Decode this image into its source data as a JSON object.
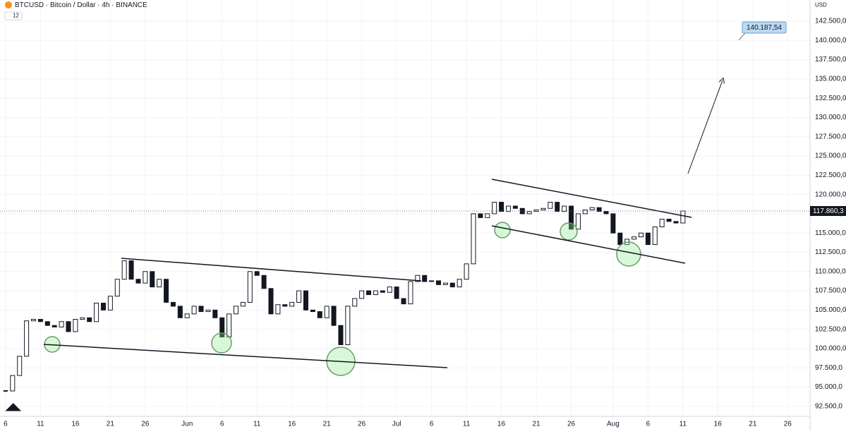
{
  "header": {
    "symbol": "BTCUSD · Bitcoin / Dollar · 4h · BINANCE",
    "indicator_count": "12",
    "currency": "USD"
  },
  "annotation": "140.187,54",
  "chart_data": {
    "type": "candlestick",
    "x": [
      0,
      1,
      2,
      3,
      4,
      5,
      6,
      7,
      8,
      9,
      10,
      11,
      12,
      13,
      14,
      15,
      16,
      17,
      18,
      19,
      20,
      21,
      22,
      23,
      24,
      25,
      26,
      27,
      28,
      29,
      30,
      31,
      32,
      33,
      34,
      35,
      36,
      37,
      38,
      39,
      40,
      41,
      42,
      43,
      44,
      45,
      46,
      47,
      48,
      49,
      50,
      51,
      52,
      53,
      54,
      55,
      56,
      57,
      58,
      59,
      60,
      61,
      62,
      63,
      64,
      65,
      66,
      67,
      68,
      69,
      70,
      71,
      72,
      73,
      74,
      75,
      76,
      77,
      78,
      79,
      80,
      81,
      82,
      83,
      84,
      85,
      86,
      87,
      88,
      89,
      90,
      91,
      92,
      93,
      94,
      95,
      96,
      97
    ],
    "series": [
      {
        "name": "BTCUSD",
        "values": [
          94500,
          96500,
          99000,
          103600,
          103800,
          103500,
          103000,
          102800,
          103500,
          102200,
          103800,
          104000,
          103500,
          105900,
          105000,
          106800,
          109000,
          111400,
          109000,
          108500,
          110000,
          108000,
          109000,
          106000,
          105500,
          104000,
          104500,
          105500,
          104800,
          105000,
          104000,
          101500,
          104500,
          105500,
          106000,
          110000,
          109500,
          107800,
          104500,
          105700,
          105500,
          106000,
          107500,
          105000,
          104800,
          104000,
          105500,
          103000,
          100500,
          105500,
          106500,
          107500,
          107000,
          107500,
          107300,
          108000,
          106500,
          105800,
          108700,
          109500,
          108700,
          108800,
          108300,
          108500,
          108000,
          109000,
          111000,
          117500,
          117000,
          117500,
          119000,
          117800,
          118500,
          118200,
          117500,
          117800,
          118000,
          118200,
          119000,
          117800,
          118500,
          115500,
          117500,
          118000,
          118300,
          117800,
          117500,
          115000,
          113500,
          114200,
          114500,
          115000,
          113500,
          115800,
          116800,
          116500,
          116300,
          117860.3
        ]
      }
    ],
    "last_price_label": "117.860,3",
    "xlim": [
      -0.8,
      115.2
    ],
    "ylim": [
      91200,
      145250
    ],
    "xticks": [
      {
        "value": 0,
        "label": "6"
      },
      {
        "value": 5,
        "label": "11"
      },
      {
        "value": 10,
        "label": "16"
      },
      {
        "value": 15,
        "label": "21"
      },
      {
        "value": 20,
        "label": "26"
      },
      {
        "value": 26,
        "label": "Jun"
      },
      {
        "value": 31,
        "label": "6"
      },
      {
        "value": 36,
        "label": "11"
      },
      {
        "value": 41,
        "label": "16"
      },
      {
        "value": 46,
        "label": "21"
      },
      {
        "value": 51,
        "label": "26"
      },
      {
        "value": 56,
        "label": "Jul"
      },
      {
        "value": 61,
        "label": "6"
      },
      {
        "value": 66,
        "label": "11"
      },
      {
        "value": 71,
        "label": "16"
      },
      {
        "value": 76,
        "label": "21"
      },
      {
        "value": 81,
        "label": "26"
      },
      {
        "value": 87,
        "label": "Aug"
      },
      {
        "value": 92,
        "label": "6"
      },
      {
        "value": 97,
        "label": "11"
      },
      {
        "value": 102,
        "label": "16"
      },
      {
        "value": 107,
        "label": "21"
      },
      {
        "value": 112,
        "label": "26"
      }
    ],
    "yticks": [
      {
        "value": 92500,
        "label": "92.500,0"
      },
      {
        "value": 95000,
        "label": "95.000,0"
      },
      {
        "value": 97500,
        "label": "97.500,0"
      },
      {
        "value": 100000,
        "label": "100.000,0"
      },
      {
        "value": 102500,
        "label": "102.500,0"
      },
      {
        "value": 105000,
        "label": "105.000,0"
      },
      {
        "value": 107500,
        "label": "107.500,0"
      },
      {
        "value": 110000,
        "label": "110.000,0"
      },
      {
        "value": 112500,
        "label": "112.500,0"
      },
      {
        "value": 115000,
        "label": "115.000,0"
      },
      {
        "value": 117500,
        "label": "117.500,0"
      },
      {
        "value": 120000,
        "label": "120.000,0"
      },
      {
        "value": 122500,
        "label": "122.500,0"
      },
      {
        "value": 125000,
        "label": "125.000,0"
      },
      {
        "value": 127500,
        "label": "127.500,0"
      },
      {
        "value": 130000,
        "label": "130.000,0"
      },
      {
        "value": 132500,
        "label": "132.500,0"
      },
      {
        "value": 135000,
        "label": "135.000,0"
      },
      {
        "value": 137500,
        "label": "137.500,0"
      },
      {
        "value": 140000,
        "label": "140.000,0"
      },
      {
        "value": 142500,
        "label": "142.500,0"
      }
    ],
    "grid": true
  }
}
